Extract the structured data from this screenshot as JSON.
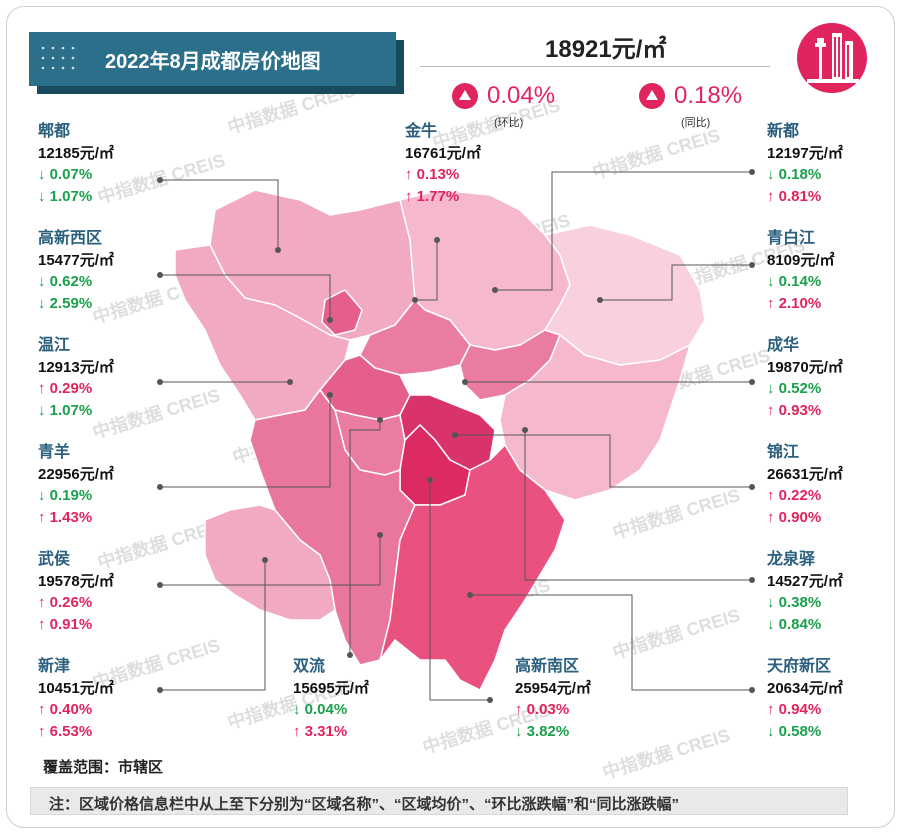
{
  "header": {
    "title": "2022年8月成都房价地图",
    "city_price": "18921元/㎡",
    "mom_pct": "0.04%",
    "mom_label": "(环比)",
    "yoy_pct": "0.18%",
    "yoy_label": "(同比)"
  },
  "watermark": "中指数据 CREIS",
  "districts": [
    {
      "name": "郫都",
      "price": "12185元/㎡",
      "mom": "↓ 0.07%",
      "yoy": "↓ 1.07%",
      "mom_dir": "down",
      "yoy_dir": "down"
    },
    {
      "name": "金牛",
      "price": "16761元/㎡",
      "mom": "↑ 0.13%",
      "yoy": "↑ 1.77%",
      "mom_dir": "up",
      "yoy_dir": "up"
    },
    {
      "name": "新都",
      "price": "12197元/㎡",
      "mom": "↓ 0.18%",
      "yoy": "↑ 0.81%",
      "mom_dir": "down",
      "yoy_dir": "up"
    },
    {
      "name": "高新西区",
      "price": "15477元/㎡",
      "mom": "↓ 0.62%",
      "yoy": "↓ 2.59%",
      "mom_dir": "down",
      "yoy_dir": "down"
    },
    {
      "name": "青白江",
      "price": "8109元/㎡",
      "mom": "↓ 0.14%",
      "yoy": "↑ 2.10%",
      "mom_dir": "down",
      "yoy_dir": "up"
    },
    {
      "name": "温江",
      "price": "12913元/㎡",
      "mom": "↑ 0.29%",
      "yoy": "↓ 1.07%",
      "mom_dir": "up",
      "yoy_dir": "down"
    },
    {
      "name": "成华",
      "price": "19870元/㎡",
      "mom": "↓ 0.52%",
      "yoy": "↑ 0.93%",
      "mom_dir": "down",
      "yoy_dir": "up"
    },
    {
      "name": "青羊",
      "price": "22956元/㎡",
      "mom": "↓ 0.19%",
      "yoy": "↑ 1.43%",
      "mom_dir": "down",
      "yoy_dir": "up"
    },
    {
      "name": "锦江",
      "price": "26631元/㎡",
      "mom": "↑ 0.22%",
      "yoy": "↑ 0.90%",
      "mom_dir": "up",
      "yoy_dir": "up"
    },
    {
      "name": "武侯",
      "price": "19578元/㎡",
      "mom": "↑ 0.26%",
      "yoy": "↑ 0.91%",
      "mom_dir": "up",
      "yoy_dir": "up"
    },
    {
      "name": "龙泉驿",
      "price": "14527元/㎡",
      "mom": "↓ 0.38%",
      "yoy": "↓ 0.84%",
      "mom_dir": "down",
      "yoy_dir": "down"
    },
    {
      "name": "新津",
      "price": "10451元/㎡",
      "mom": "↑ 0.40%",
      "yoy": "↑ 6.53%",
      "mom_dir": "up",
      "yoy_dir": "up"
    },
    {
      "name": "双流",
      "price": "15695元/㎡",
      "mom": "↓ 0.04%",
      "yoy": "↑ 3.31%",
      "mom_dir": "down",
      "yoy_dir": "up"
    },
    {
      "name": "高新南区",
      "price": "25954元/㎡",
      "mom": "↑ 0.03%",
      "yoy": "↓ 3.82%",
      "mom_dir": "up",
      "yoy_dir": "down"
    },
    {
      "name": "天府新区",
      "price": "20634元/㎡",
      "mom": "↑ 0.94%",
      "yoy": "↓ 0.58%",
      "mom_dir": "up",
      "yoy_dir": "down"
    }
  ],
  "footer": {
    "coverage": "覆盖范围：市辖区",
    "note": "注：区域价格信息栏中从上至下分别为“区域名称”、“区域均价”、“环比涨跌幅”和“同比涨跌幅”"
  },
  "colors": {
    "accent": "#e0245e",
    "up": "#e0245e",
    "down": "#19a04b",
    "title_bg": "#2b6f8a",
    "name": "#2b5f7e"
  }
}
